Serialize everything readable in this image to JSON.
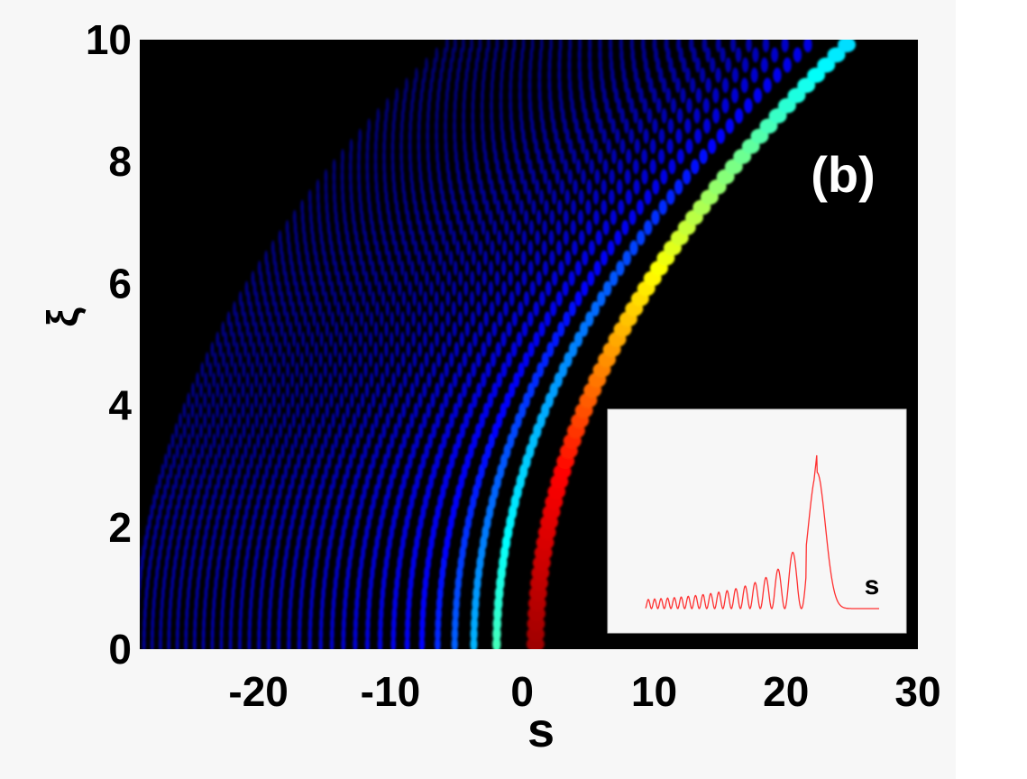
{
  "chart_data": {
    "type": "heatmap",
    "panel_label": "(b)",
    "xlabel": "s",
    "ylabel": "ξ",
    "xlim": [
      -29,
      30
    ],
    "ylim": [
      0,
      10
    ],
    "xticks": [
      -20,
      -10,
      0,
      10,
      20,
      30
    ],
    "yticks": [
      0,
      2,
      4,
      6,
      8,
      10
    ],
    "colormap": [
      "#000000",
      "#00008f",
      "#0000ff",
      "#00ffff",
      "#ffff00",
      "#ff0000",
      "#8f0000"
    ],
    "main_lobe": {
      "x_at_y0": 1.0,
      "x_at_y10": 25.0,
      "description_path": "parabolic Airy-beam main lobe"
    },
    "inset": {
      "xlabel": "s",
      "line_color": "#ff3030",
      "profile": "intensity profile with oscillating tail rising to a main peak"
    }
  }
}
